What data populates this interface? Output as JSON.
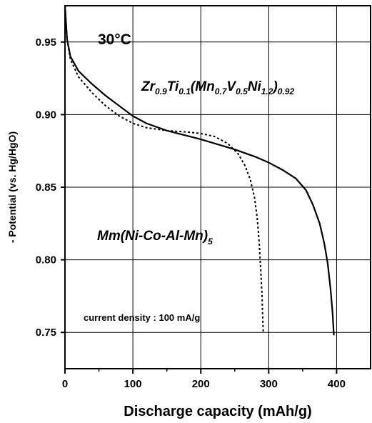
{
  "chart_data": {
    "type": "line",
    "xlabel": "Discharge capacity (mAh/g)",
    "ylabel": "- Potential (vs. Hg/HgO)",
    "xlim": [
      0,
      450
    ],
    "ylim": [
      0.725,
      0.975
    ],
    "x_ticks": [
      0,
      100,
      200,
      300,
      400
    ],
    "y_ticks": [
      0.75,
      0.8,
      0.85,
      0.9,
      0.95
    ],
    "x_tick_labels": [
      "0",
      "100",
      "200",
      "300",
      "400"
    ],
    "y_tick_labels": [
      "0.75",
      "0.80",
      "0.85",
      "0.90",
      "0.95"
    ],
    "grid": true,
    "annotations": {
      "temperature": "30°C",
      "current_density": "current density : 100 mA/g",
      "zr_alloy": {
        "t1": "Zr",
        "s1": "0.9",
        "t2": "Ti",
        "s2": "0.1",
        "t3": "(Mn",
        "s3": "0.7",
        "t4": "V",
        "s4": "0.5",
        "t5": "Ni",
        "s5": "1.2",
        "t6": ")",
        "s6": "0.92"
      },
      "mm_alloy": {
        "t1": "Mm(Ni-Co-Al-Mn)",
        "s1": "5"
      }
    },
    "series": [
      {
        "style": "solid",
        "points": [
          [
            0,
            0.975
          ],
          [
            3,
            0.952
          ],
          [
            8,
            0.94
          ],
          [
            20,
            0.93
          ],
          [
            40,
            0.921
          ],
          [
            60,
            0.913
          ],
          [
            80,
            0.906
          ],
          [
            100,
            0.899
          ],
          [
            120,
            0.894
          ],
          [
            150,
            0.889
          ],
          [
            200,
            0.883
          ],
          [
            250,
            0.876
          ],
          [
            280,
            0.871
          ],
          [
            300,
            0.867
          ],
          [
            320,
            0.862
          ],
          [
            340,
            0.856
          ],
          [
            355,
            0.848
          ],
          [
            365,
            0.838
          ],
          [
            375,
            0.825
          ],
          [
            382,
            0.811
          ],
          [
            387,
            0.797
          ],
          [
            391,
            0.78
          ],
          [
            394,
            0.764
          ],
          [
            396,
            0.748
          ]
        ]
      },
      {
        "style": "dotted",
        "points": [
          [
            0,
            0.975
          ],
          [
            3,
            0.952
          ],
          [
            8,
            0.938
          ],
          [
            20,
            0.926
          ],
          [
            40,
            0.915
          ],
          [
            60,
            0.906
          ],
          [
            80,
            0.899
          ],
          [
            100,
            0.894
          ],
          [
            120,
            0.891
          ],
          [
            150,
            0.889
          ],
          [
            180,
            0.888
          ],
          [
            200,
            0.887
          ],
          [
            220,
            0.885
          ],
          [
            240,
            0.88
          ],
          [
            255,
            0.873
          ],
          [
            265,
            0.865
          ],
          [
            273,
            0.855
          ],
          [
            279,
            0.843
          ],
          [
            283,
            0.829
          ],
          [
            286,
            0.812
          ],
          [
            288,
            0.795
          ],
          [
            290,
            0.778
          ],
          [
            291,
            0.762
          ],
          [
            292,
            0.75
          ]
        ]
      }
    ]
  }
}
